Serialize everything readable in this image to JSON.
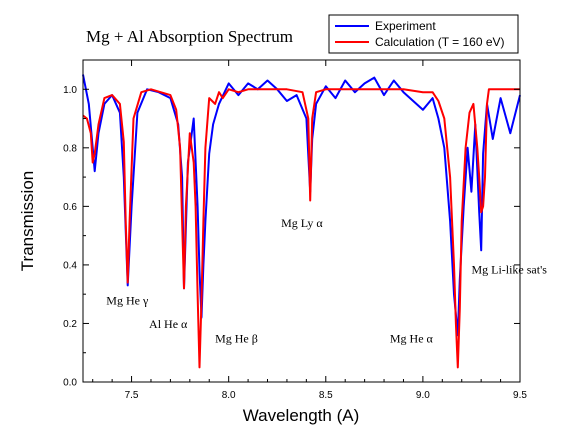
{
  "chart_data": {
    "type": "line",
    "title": "Mg + Al Absorption Spectrum",
    "xlabel": "Wavelength (A)",
    "ylabel": "Transmission",
    "xlim": [
      7.25,
      9.5
    ],
    "ylim": [
      0.0,
      1.1
    ],
    "x_ticks": [
      "7.5",
      "8.0",
      "8.5",
      "9.0",
      "9.5"
    ],
    "y_ticks": [
      "0.0",
      "0.2",
      "0.4",
      "0.6",
      "0.8",
      "1.0"
    ],
    "grid": false,
    "legend_position": "top-right",
    "series": [
      {
        "name": "Experiment",
        "color": "#0000ff",
        "x": [
          7.25,
          7.28,
          7.3,
          7.31,
          7.33,
          7.36,
          7.4,
          7.44,
          7.46,
          7.48,
          7.5,
          7.53,
          7.58,
          7.64,
          7.7,
          7.74,
          7.76,
          7.77,
          7.79,
          7.82,
          7.84,
          7.85,
          7.86,
          7.87,
          7.88,
          7.9,
          7.92,
          7.95,
          8.0,
          8.05,
          8.1,
          8.15,
          8.2,
          8.25,
          8.3,
          8.35,
          8.4,
          8.42,
          8.43,
          8.45,
          8.5,
          8.55,
          8.6,
          8.65,
          8.7,
          8.75,
          8.8,
          8.85,
          8.9,
          8.95,
          9.0,
          9.05,
          9.08,
          9.11,
          9.14,
          9.16,
          9.18,
          9.19,
          9.21,
          9.23,
          9.25,
          9.27,
          9.29,
          9.3,
          9.31,
          9.33,
          9.36,
          9.4,
          9.45,
          9.5
        ],
        "y": [
          1.05,
          0.95,
          0.8,
          0.72,
          0.85,
          0.95,
          0.98,
          0.92,
          0.7,
          0.33,
          0.6,
          0.92,
          1.0,
          0.99,
          0.97,
          0.88,
          0.7,
          0.32,
          0.75,
          0.9,
          0.6,
          0.38,
          0.22,
          0.4,
          0.55,
          0.78,
          0.88,
          0.95,
          1.02,
          0.98,
          1.02,
          1.0,
          1.03,
          1.0,
          0.96,
          0.98,
          0.9,
          0.65,
          0.83,
          0.95,
          1.01,
          0.97,
          1.03,
          0.99,
          1.02,
          1.04,
          0.98,
          1.03,
          0.99,
          0.96,
          0.93,
          0.97,
          0.9,
          0.8,
          0.55,
          0.3,
          0.16,
          0.35,
          0.6,
          0.8,
          0.65,
          0.88,
          0.58,
          0.45,
          0.78,
          0.95,
          0.83,
          0.97,
          0.85,
          0.98
        ]
      },
      {
        "name": "Calculation (T = 160 eV)",
        "color": "#ff0000",
        "x": [
          7.25,
          7.27,
          7.29,
          7.3,
          7.31,
          7.33,
          7.36,
          7.4,
          7.44,
          7.46,
          7.47,
          7.48,
          7.49,
          7.51,
          7.55,
          7.6,
          7.65,
          7.7,
          7.73,
          7.75,
          7.76,
          7.77,
          7.78,
          7.8,
          7.82,
          7.83,
          7.84,
          7.85,
          7.86,
          7.87,
          7.88,
          7.9,
          7.93,
          7.95,
          7.97,
          8.0,
          8.05,
          8.1,
          8.2,
          8.3,
          8.38,
          8.41,
          8.42,
          8.43,
          8.45,
          8.5,
          8.6,
          8.7,
          8.8,
          8.9,
          9.0,
          9.05,
          9.08,
          9.11,
          9.14,
          9.16,
          9.17,
          9.18,
          9.19,
          9.2,
          9.22,
          9.24,
          9.26,
          9.28,
          9.29,
          9.3,
          9.31,
          9.32,
          9.33,
          9.34,
          9.36,
          9.4,
          9.5
        ],
        "y": [
          0.91,
          0.9,
          0.85,
          0.75,
          0.78,
          0.88,
          0.97,
          0.98,
          0.95,
          0.82,
          0.55,
          0.34,
          0.55,
          0.9,
          0.99,
          1.0,
          0.99,
          0.98,
          0.93,
          0.8,
          0.55,
          0.32,
          0.6,
          0.85,
          0.75,
          0.6,
          0.3,
          0.05,
          0.28,
          0.55,
          0.8,
          0.97,
          0.95,
          0.99,
          0.97,
          1.0,
          0.99,
          1.0,
          1.0,
          1.0,
          0.99,
          0.9,
          0.62,
          0.9,
          0.99,
          1.0,
          1.0,
          1.0,
          1.0,
          1.0,
          0.99,
          0.99,
          0.96,
          0.9,
          0.7,
          0.4,
          0.2,
          0.05,
          0.25,
          0.55,
          0.8,
          0.92,
          0.95,
          0.8,
          0.7,
          0.58,
          0.6,
          0.7,
          0.95,
          1.0,
          1.0,
          1.0,
          1.0
        ]
      }
    ],
    "annotations": [
      {
        "text": "Mg He γ",
        "x": 7.37,
        "y": 0.265
      },
      {
        "text": "Al He α",
        "x": 7.59,
        "y": 0.185
      },
      {
        "text": "Mg He β",
        "x": 7.93,
        "y": 0.135
      },
      {
        "text": "Mg Ly α",
        "x": 8.27,
        "y": 0.53
      },
      {
        "text": "Mg He α",
        "x": 8.83,
        "y": 0.135
      },
      {
        "text": "Mg Li-like sat's",
        "x": 9.25,
        "y": 0.37
      }
    ]
  }
}
